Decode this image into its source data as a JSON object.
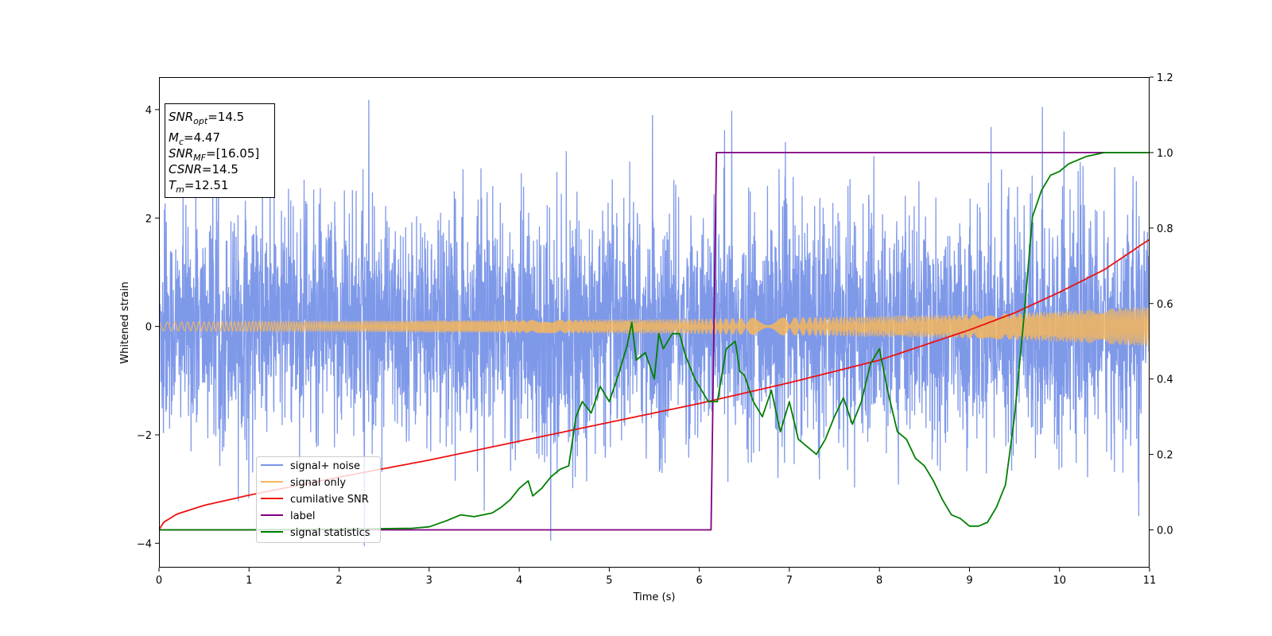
{
  "chart_data": {
    "type": "line",
    "xlabel": "Time (s)",
    "ylabel": "Whitened strain",
    "xlim": [
      0,
      11
    ],
    "ylim_left": [
      -4.45,
      4.6
    ],
    "ylim_right": [
      -0.1,
      1.2
    ],
    "x_ticks": [
      0,
      1,
      2,
      3,
      4,
      5,
      6,
      7,
      8,
      9,
      10,
      11
    ],
    "y_ticks_left": [
      -4,
      -2,
      0,
      2,
      4
    ],
    "y_ticks_right": [
      0.0,
      0.2,
      0.4,
      0.6,
      0.8,
      1.0,
      1.2
    ],
    "y_ticks_right_labels": [
      "0.0",
      "0.2",
      "0.4",
      "0.6",
      "0.8",
      "1.0",
      "1.2"
    ],
    "legend_position": "lower-left",
    "info_box": {
      "snr_opt": {
        "base": "SNR",
        "sub": "opt",
        "value": "=14.5"
      },
      "mc": {
        "base": "M",
        "sub": "c",
        "value": "=4.47"
      },
      "snr_mf": {
        "base": "SNR",
        "sub": "MF",
        "value": "=[16.05]"
      },
      "csnr": {
        "base": "CSNR",
        "value": "=14.5"
      },
      "tm": {
        "base": "T",
        "sub": "m",
        "value": "=12.51"
      }
    },
    "series": [
      {
        "name": "signal+ noise",
        "axis": "left",
        "color": "#7893e8",
        "noise": {
          "typical_amplitude": [
            1.3,
            2.3
          ],
          "spikes": [
            [
              2.33,
              4.18
            ],
            [
              2.28,
              -4.05
            ],
            [
              4.35,
              -3.95
            ],
            [
              5.48,
              3.9
            ],
            [
              6.36,
              3.98
            ],
            [
              9.81,
              4.05
            ],
            [
              9.24,
              3.68
            ],
            [
              10.05,
              3.6
            ],
            [
              6.28,
              3.62
            ],
            [
              10.88,
              -3.5
            ]
          ]
        }
      },
      {
        "name": "signal only",
        "axis": "left",
        "color": "#f5b65c",
        "envelope_x": [
          0,
          2,
          4,
          6,
          8,
          9,
          10,
          11
        ],
        "envelope_y": [
          0.08,
          0.1,
          0.12,
          0.14,
          0.19,
          0.22,
          0.28,
          0.37
        ]
      },
      {
        "name": "cumilative SNR",
        "axis": "right",
        "color": "#ee1111",
        "x": [
          0,
          0.05,
          0.2,
          0.5,
          1,
          2,
          3,
          4,
          5,
          6,
          7,
          8,
          9,
          9.5,
          10,
          10.5,
          11
        ],
        "y": [
          0.0,
          0.02,
          0.042,
          0.065,
          0.092,
          0.14,
          0.185,
          0.235,
          0.285,
          0.335,
          0.39,
          0.45,
          0.53,
          0.575,
          0.63,
          0.69,
          0.77
        ]
      },
      {
        "name": "label",
        "axis": "right",
        "color": "#800080",
        "x": [
          0,
          6.13,
          6.19,
          11
        ],
        "y": [
          0,
          0,
          1,
          1
        ]
      },
      {
        "name": "signal statistics",
        "axis": "right",
        "color": "#008000",
        "x": [
          0,
          1,
          2,
          2.8,
          3.0,
          3.2,
          3.35,
          3.5,
          3.7,
          3.8,
          3.9,
          4.0,
          4.1,
          4.15,
          4.25,
          4.35,
          4.45,
          4.55,
          4.63,
          4.7,
          4.8,
          4.9,
          5.0,
          5.1,
          5.2,
          5.25,
          5.3,
          5.4,
          5.5,
          5.55,
          5.6,
          5.7,
          5.78,
          5.85,
          5.95,
          6.1,
          6.2,
          6.3,
          6.4,
          6.45,
          6.5,
          6.6,
          6.7,
          6.8,
          6.9,
          7.0,
          7.1,
          7.2,
          7.3,
          7.4,
          7.5,
          7.6,
          7.7,
          7.8,
          7.9,
          8.0,
          8.05,
          8.1,
          8.2,
          8.3,
          8.4,
          8.5,
          8.6,
          8.7,
          8.8,
          8.9,
          9.0,
          9.1,
          9.2,
          9.3,
          9.4,
          9.5,
          9.6,
          9.7,
          9.8,
          9.9,
          10.0,
          10.1,
          10.2,
          10.3,
          10.5,
          11
        ],
        "y": [
          0.0,
          0.0,
          0.002,
          0.004,
          0.008,
          0.025,
          0.04,
          0.035,
          0.045,
          0.06,
          0.08,
          0.11,
          0.13,
          0.09,
          0.11,
          0.14,
          0.16,
          0.17,
          0.3,
          0.34,
          0.31,
          0.38,
          0.34,
          0.41,
          0.49,
          0.55,
          0.45,
          0.47,
          0.4,
          0.52,
          0.48,
          0.52,
          0.52,
          0.46,
          0.4,
          0.34,
          0.34,
          0.48,
          0.5,
          0.42,
          0.41,
          0.34,
          0.3,
          0.37,
          0.26,
          0.34,
          0.24,
          0.22,
          0.2,
          0.24,
          0.3,
          0.35,
          0.28,
          0.34,
          0.44,
          0.48,
          0.42,
          0.36,
          0.26,
          0.24,
          0.19,
          0.17,
          0.13,
          0.08,
          0.04,
          0.03,
          0.01,
          0.01,
          0.02,
          0.06,
          0.12,
          0.3,
          0.55,
          0.83,
          0.9,
          0.94,
          0.95,
          0.97,
          0.98,
          0.99,
          1.0,
          1.0
        ]
      }
    ]
  }
}
